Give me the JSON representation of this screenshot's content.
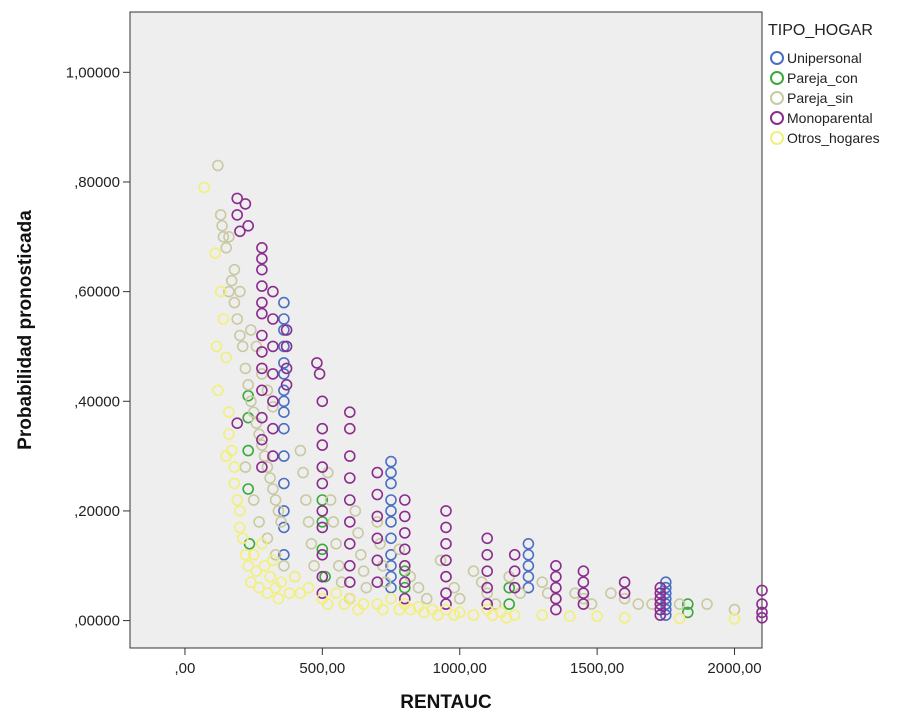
{
  "chart_data": {
    "type": "scatter",
    "title": "",
    "xlabel": "RENTAUC",
    "ylabel": "Probabilidad pronosticada",
    "xlim": [
      -200,
      2100
    ],
    "ylim": [
      -0.05,
      1.11
    ],
    "x_ticks": [
      0,
      500,
      1000,
      1500,
      2000
    ],
    "x_tick_labels": [
      ",00",
      "500,00",
      "1000,00",
      "1500,00",
      "2000,00"
    ],
    "y_ticks": [
      0,
      0.2,
      0.4,
      0.6,
      0.8,
      1.0
    ],
    "y_tick_labels": [
      ",00000",
      ",20000",
      ",40000",
      ",60000",
      ",80000",
      "1,00000"
    ],
    "grid": false,
    "plot_background": "#eeeeee",
    "marker": "open-circle",
    "legend": {
      "title": "TIPO_HOGAR",
      "placement": "right"
    },
    "series": [
      {
        "name": "Unipersonal",
        "color": "#4b6fc4",
        "points": [
          [
            360,
            0.58
          ],
          [
            360,
            0.55
          ],
          [
            360,
            0.53
          ],
          [
            360,
            0.5
          ],
          [
            360,
            0.47
          ],
          [
            360,
            0.45
          ],
          [
            360,
            0.42
          ],
          [
            360,
            0.4
          ],
          [
            360,
            0.38
          ],
          [
            360,
            0.35
          ],
          [
            360,
            0.3
          ],
          [
            360,
            0.25
          ],
          [
            360,
            0.2
          ],
          [
            360,
            0.17
          ],
          [
            360,
            0.12
          ],
          [
            750,
            0.29
          ],
          [
            750,
            0.27
          ],
          [
            750,
            0.25
          ],
          [
            750,
            0.22
          ],
          [
            750,
            0.2
          ],
          [
            750,
            0.18
          ],
          [
            750,
            0.15
          ],
          [
            750,
            0.12
          ],
          [
            750,
            0.1
          ],
          [
            750,
            0.08
          ],
          [
            750,
            0.06
          ],
          [
            1250,
            0.14
          ],
          [
            1250,
            0.12
          ],
          [
            1250,
            0.1
          ],
          [
            1250,
            0.08
          ],
          [
            1250,
            0.06
          ],
          [
            1750,
            0.07
          ],
          [
            1750,
            0.06
          ],
          [
            1750,
            0.05
          ],
          [
            1750,
            0.04
          ],
          [
            1750,
            0.03
          ],
          [
            1750,
            0.02
          ],
          [
            1750,
            0.01
          ]
        ]
      },
      {
        "name": "Pareja_con",
        "color": "#3aaa3a",
        "points": [
          [
            230,
            0.41
          ],
          [
            230,
            0.37
          ],
          [
            230,
            0.31
          ],
          [
            230,
            0.24
          ],
          [
            235,
            0.14
          ],
          [
            500,
            0.22
          ],
          [
            500,
            0.18
          ],
          [
            500,
            0.13
          ],
          [
            510,
            0.08
          ],
          [
            800,
            0.09
          ],
          [
            800,
            0.06
          ],
          [
            1180,
            0.06
          ],
          [
            1180,
            0.03
          ],
          [
            1830,
            0.03
          ],
          [
            1830,
            0.015
          ]
        ]
      },
      {
        "name": "Pareja_sin",
        "color": "#c9c9a3",
        "points": [
          [
            120,
            0.83
          ],
          [
            130,
            0.74
          ],
          [
            135,
            0.72
          ],
          [
            140,
            0.7
          ],
          [
            150,
            0.68
          ],
          [
            160,
            0.7
          ],
          [
            170,
            0.62
          ],
          [
            180,
            0.58
          ],
          [
            190,
            0.55
          ],
          [
            200,
            0.52
          ],
          [
            210,
            0.5
          ],
          [
            220,
            0.46
          ],
          [
            230,
            0.43
          ],
          [
            240,
            0.4
          ],
          [
            250,
            0.38
          ],
          [
            260,
            0.36
          ],
          [
            270,
            0.34
          ],
          [
            280,
            0.32
          ],
          [
            290,
            0.3
          ],
          [
            300,
            0.28
          ],
          [
            310,
            0.26
          ],
          [
            320,
            0.24
          ],
          [
            330,
            0.22
          ],
          [
            340,
            0.2
          ],
          [
            350,
            0.18
          ],
          [
            280,
            0.45
          ],
          [
            300,
            0.42
          ],
          [
            320,
            0.39
          ],
          [
            260,
            0.5
          ],
          [
            240,
            0.53
          ],
          [
            200,
            0.6
          ],
          [
            180,
            0.64
          ],
          [
            160,
            0.6
          ],
          [
            220,
            0.28
          ],
          [
            250,
            0.22
          ],
          [
            270,
            0.18
          ],
          [
            300,
            0.15
          ],
          [
            330,
            0.12
          ],
          [
            360,
            0.1
          ],
          [
            400,
            0.08
          ],
          [
            420,
            0.31
          ],
          [
            430,
            0.27
          ],
          [
            440,
            0.22
          ],
          [
            450,
            0.18
          ],
          [
            460,
            0.14
          ],
          [
            470,
            0.1
          ],
          [
            520,
            0.27
          ],
          [
            530,
            0.22
          ],
          [
            540,
            0.18
          ],
          [
            550,
            0.14
          ],
          [
            560,
            0.1
          ],
          [
            570,
            0.07
          ],
          [
            620,
            0.2
          ],
          [
            630,
            0.16
          ],
          [
            640,
            0.12
          ],
          [
            650,
            0.09
          ],
          [
            660,
            0.06
          ],
          [
            700,
            0.18
          ],
          [
            710,
            0.14
          ],
          [
            720,
            0.1
          ],
          [
            730,
            0.07
          ],
          [
            780,
            0.13
          ],
          [
            800,
            0.1
          ],
          [
            820,
            0.08
          ],
          [
            850,
            0.06
          ],
          [
            880,
            0.04
          ],
          [
            930,
            0.11
          ],
          [
            950,
            0.08
          ],
          [
            980,
            0.06
          ],
          [
            1000,
            0.04
          ],
          [
            1050,
            0.09
          ],
          [
            1080,
            0.07
          ],
          [
            1100,
            0.05
          ],
          [
            1130,
            0.03
          ],
          [
            1180,
            0.08
          ],
          [
            1200,
            0.06
          ],
          [
            1220,
            0.05
          ],
          [
            1300,
            0.07
          ],
          [
            1320,
            0.05
          ],
          [
            1350,
            0.04
          ],
          [
            1420,
            0.05
          ],
          [
            1450,
            0.04
          ],
          [
            1480,
            0.03
          ],
          [
            1550,
            0.05
          ],
          [
            1600,
            0.04
          ],
          [
            1650,
            0.03
          ],
          [
            1700,
            0.03
          ],
          [
            1800,
            0.03
          ],
          [
            1900,
            0.03
          ],
          [
            2000,
            0.02
          ]
        ]
      },
      {
        "name": "Monoparental",
        "color": "#8a2d8e",
        "points": [
          [
            190,
            0.77
          ],
          [
            190,
            0.74
          ],
          [
            200,
            0.71
          ],
          [
            220,
            0.76
          ],
          [
            230,
            0.72
          ],
          [
            280,
            0.68
          ],
          [
            280,
            0.66
          ],
          [
            280,
            0.64
          ],
          [
            280,
            0.61
          ],
          [
            280,
            0.58
          ],
          [
            280,
            0.56
          ],
          [
            280,
            0.52
          ],
          [
            280,
            0.49
          ],
          [
            280,
            0.46
          ],
          [
            280,
            0.42
          ],
          [
            280,
            0.37
          ],
          [
            280,
            0.33
          ],
          [
            280,
            0.28
          ],
          [
            190,
            0.36
          ],
          [
            320,
            0.6
          ],
          [
            320,
            0.55
          ],
          [
            320,
            0.5
          ],
          [
            320,
            0.45
          ],
          [
            320,
            0.4
          ],
          [
            320,
            0.35
          ],
          [
            320,
            0.3
          ],
          [
            370,
            0.53
          ],
          [
            370,
            0.5
          ],
          [
            370,
            0.46
          ],
          [
            370,
            0.43
          ],
          [
            480,
            0.47
          ],
          [
            490,
            0.45
          ],
          [
            500,
            0.4
          ],
          [
            500,
            0.35
          ],
          [
            500,
            0.32
          ],
          [
            500,
            0.28
          ],
          [
            500,
            0.25
          ],
          [
            500,
            0.2
          ],
          [
            500,
            0.17
          ],
          [
            500,
            0.12
          ],
          [
            500,
            0.08
          ],
          [
            500,
            0.05
          ],
          [
            600,
            0.38
          ],
          [
            600,
            0.35
          ],
          [
            600,
            0.3
          ],
          [
            600,
            0.26
          ],
          [
            600,
            0.22
          ],
          [
            600,
            0.18
          ],
          [
            600,
            0.14
          ],
          [
            600,
            0.1
          ],
          [
            600,
            0.07
          ],
          [
            600,
            0.04
          ],
          [
            700,
            0.27
          ],
          [
            700,
            0.23
          ],
          [
            700,
            0.19
          ],
          [
            700,
            0.15
          ],
          [
            700,
            0.11
          ],
          [
            700,
            0.07
          ],
          [
            800,
            0.22
          ],
          [
            800,
            0.19
          ],
          [
            800,
            0.16
          ],
          [
            800,
            0.13
          ],
          [
            800,
            0.1
          ],
          [
            800,
            0.07
          ],
          [
            800,
            0.04
          ],
          [
            950,
            0.2
          ],
          [
            950,
            0.17
          ],
          [
            950,
            0.14
          ],
          [
            950,
            0.11
          ],
          [
            950,
            0.08
          ],
          [
            950,
            0.05
          ],
          [
            950,
            0.03
          ],
          [
            1100,
            0.15
          ],
          [
            1100,
            0.12
          ],
          [
            1100,
            0.09
          ],
          [
            1100,
            0.06
          ],
          [
            1100,
            0.03
          ],
          [
            1200,
            0.12
          ],
          [
            1200,
            0.09
          ],
          [
            1200,
            0.06
          ],
          [
            1350,
            0.1
          ],
          [
            1350,
            0.08
          ],
          [
            1350,
            0.06
          ],
          [
            1350,
            0.04
          ],
          [
            1350,
            0.02
          ],
          [
            1450,
            0.09
          ],
          [
            1450,
            0.07
          ],
          [
            1450,
            0.05
          ],
          [
            1450,
            0.03
          ],
          [
            1600,
            0.07
          ],
          [
            1600,
            0.05
          ],
          [
            1730,
            0.06
          ],
          [
            1730,
            0.05
          ],
          [
            1730,
            0.04
          ],
          [
            1730,
            0.03
          ],
          [
            1730,
            0.02
          ],
          [
            1730,
            0.01
          ],
          [
            2100,
            0.055
          ],
          [
            2100,
            0.03
          ],
          [
            2100,
            0.015
          ],
          [
            2100,
            0.005
          ]
        ]
      },
      {
        "name": "Otros_hogares",
        "color": "#f2ef7a",
        "points": [
          [
            70,
            0.79
          ],
          [
            110,
            0.67
          ],
          [
            115,
            0.5
          ],
          [
            120,
            0.42
          ],
          [
            130,
            0.6
          ],
          [
            140,
            0.55
          ],
          [
            150,
            0.48
          ],
          [
            150,
            0.3
          ],
          [
            160,
            0.38
          ],
          [
            160,
            0.34
          ],
          [
            170,
            0.31
          ],
          [
            180,
            0.28
          ],
          [
            180,
            0.25
          ],
          [
            190,
            0.22
          ],
          [
            200,
            0.2
          ],
          [
            200,
            0.17
          ],
          [
            210,
            0.15
          ],
          [
            220,
            0.12
          ],
          [
            230,
            0.1
          ],
          [
            240,
            0.07
          ],
          [
            250,
            0.12
          ],
          [
            260,
            0.09
          ],
          [
            270,
            0.06
          ],
          [
            280,
            0.14
          ],
          [
            290,
            0.1
          ],
          [
            300,
            0.05
          ],
          [
            310,
            0.08
          ],
          [
            320,
            0.11
          ],
          [
            330,
            0.06
          ],
          [
            340,
            0.04
          ],
          [
            350,
            0.07
          ],
          [
            380,
            0.05
          ],
          [
            400,
            0.08
          ],
          [
            420,
            0.05
          ],
          [
            450,
            0.06
          ],
          [
            500,
            0.04
          ],
          [
            520,
            0.03
          ],
          [
            550,
            0.05
          ],
          [
            580,
            0.03
          ],
          [
            600,
            0.04
          ],
          [
            630,
            0.02
          ],
          [
            650,
            0.03
          ],
          [
            700,
            0.03
          ],
          [
            720,
            0.02
          ],
          [
            750,
            0.04
          ],
          [
            780,
            0.02
          ],
          [
            800,
            0.03
          ],
          [
            820,
            0.02
          ],
          [
            850,
            0.025
          ],
          [
            870,
            0.015
          ],
          [
            900,
            0.02
          ],
          [
            920,
            0.01
          ],
          [
            950,
            0.02
          ],
          [
            980,
            0.01
          ],
          [
            1000,
            0.015
          ],
          [
            1050,
            0.01
          ],
          [
            1100,
            0.02
          ],
          [
            1120,
            0.01
          ],
          [
            1150,
            0.015
          ],
          [
            1170,
            0.005
          ],
          [
            1200,
            0.01
          ],
          [
            1300,
            0.01
          ],
          [
            1400,
            0.008
          ],
          [
            1500,
            0.008
          ],
          [
            1600,
            0.005
          ],
          [
            1800,
            0.004
          ],
          [
            2000,
            0.003
          ]
        ]
      }
    ]
  }
}
